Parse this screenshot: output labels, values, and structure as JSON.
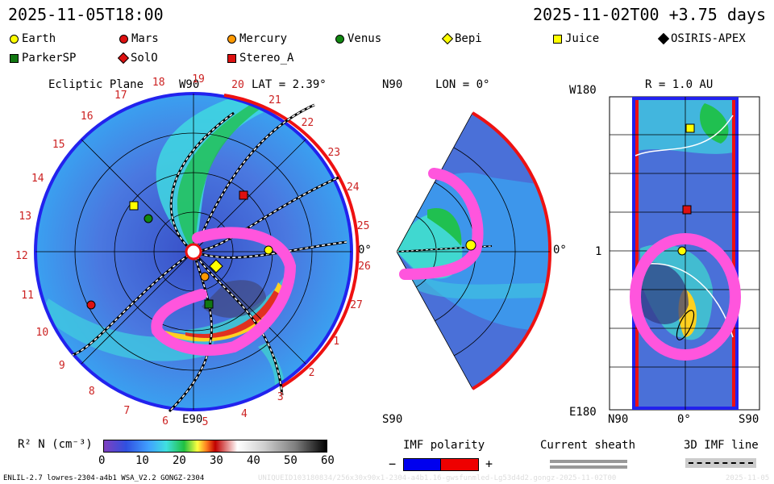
{
  "header": {
    "timestamp_left": "2025-11-05T18:00",
    "timestamp_right": "2025-11-02T00 +3.75 days"
  },
  "legend": [
    {
      "label": "Earth",
      "shape": "circle",
      "color": "#ffff00"
    },
    {
      "label": "Mars",
      "shape": "circle",
      "color": "#dd1111"
    },
    {
      "label": "Mercury",
      "shape": "circle",
      "color": "#ff9900"
    },
    {
      "label": "Venus",
      "shape": "circle",
      "color": "#118811"
    },
    {
      "label": "Bepi",
      "shape": "diamond",
      "color": "#ffff00"
    },
    {
      "label": "Juice",
      "shape": "square",
      "color": "#ffff00"
    },
    {
      "label": "OSIRIS-APEX",
      "shape": "diamond",
      "color": "#000000"
    },
    {
      "label": "ParkerSP",
      "shape": "square",
      "color": "#117711"
    },
    {
      "label": "SolO",
      "shape": "diamond",
      "color": "#dd1111"
    },
    {
      "label": "Stereo_A",
      "shape": "square",
      "color": "#dd1111"
    }
  ],
  "ecliptic": {
    "title": "Ecliptic Plane",
    "top_label": "W90",
    "lat": "LAT = 2.39°",
    "bottom_label": "E90",
    "right_label": "0°",
    "ticks": [
      "20",
      "21",
      "22",
      "23",
      "24",
      "25",
      "26",
      "27",
      "1",
      "2",
      "3",
      "4",
      "5",
      "6",
      "7",
      "8",
      "9",
      "10",
      "11",
      "12",
      "13",
      "14",
      "15",
      "16",
      "17",
      "18",
      "19"
    ]
  },
  "meridional": {
    "top_label": "N90",
    "lon": "LON = 0°",
    "bottom_label": "S90",
    "right_label": "0°"
  },
  "radial": {
    "r_label": "R = 1.0 AU",
    "top_label": "W180",
    "mid_label": "1",
    "bottom_label": "E180",
    "x_left": "N90",
    "x_mid": "0°",
    "x_right": "S90"
  },
  "colorbar": {
    "label": "R² N (cm⁻³)",
    "ticks": [
      "0",
      "10",
      "20",
      "30",
      "40",
      "50",
      "60"
    ]
  },
  "imf": {
    "title": "IMF polarity",
    "minus": "−",
    "plus": "+",
    "colors": {
      "negative": "#0000ee",
      "positive": "#ee0000"
    }
  },
  "current_sheath": {
    "title": "Current sheath"
  },
  "imf_line": {
    "title": "3D IMF line"
  },
  "footer": {
    "model": "ENLIL-2.7 lowres-2304-a4b1 WSA_V2.2 GONGZ-2304",
    "run_id": "UNIQUEID103180834/256x30x90x1-2304-a4b1.16-gwsfunmled-Lg53d4d2.gongz-2025-11-02T00",
    "date": "2025-11-05"
  },
  "colors": {
    "accent_magenta": "#ff55dd",
    "rim_red": "#ee1111",
    "rim_blue": "#2222ee"
  }
}
